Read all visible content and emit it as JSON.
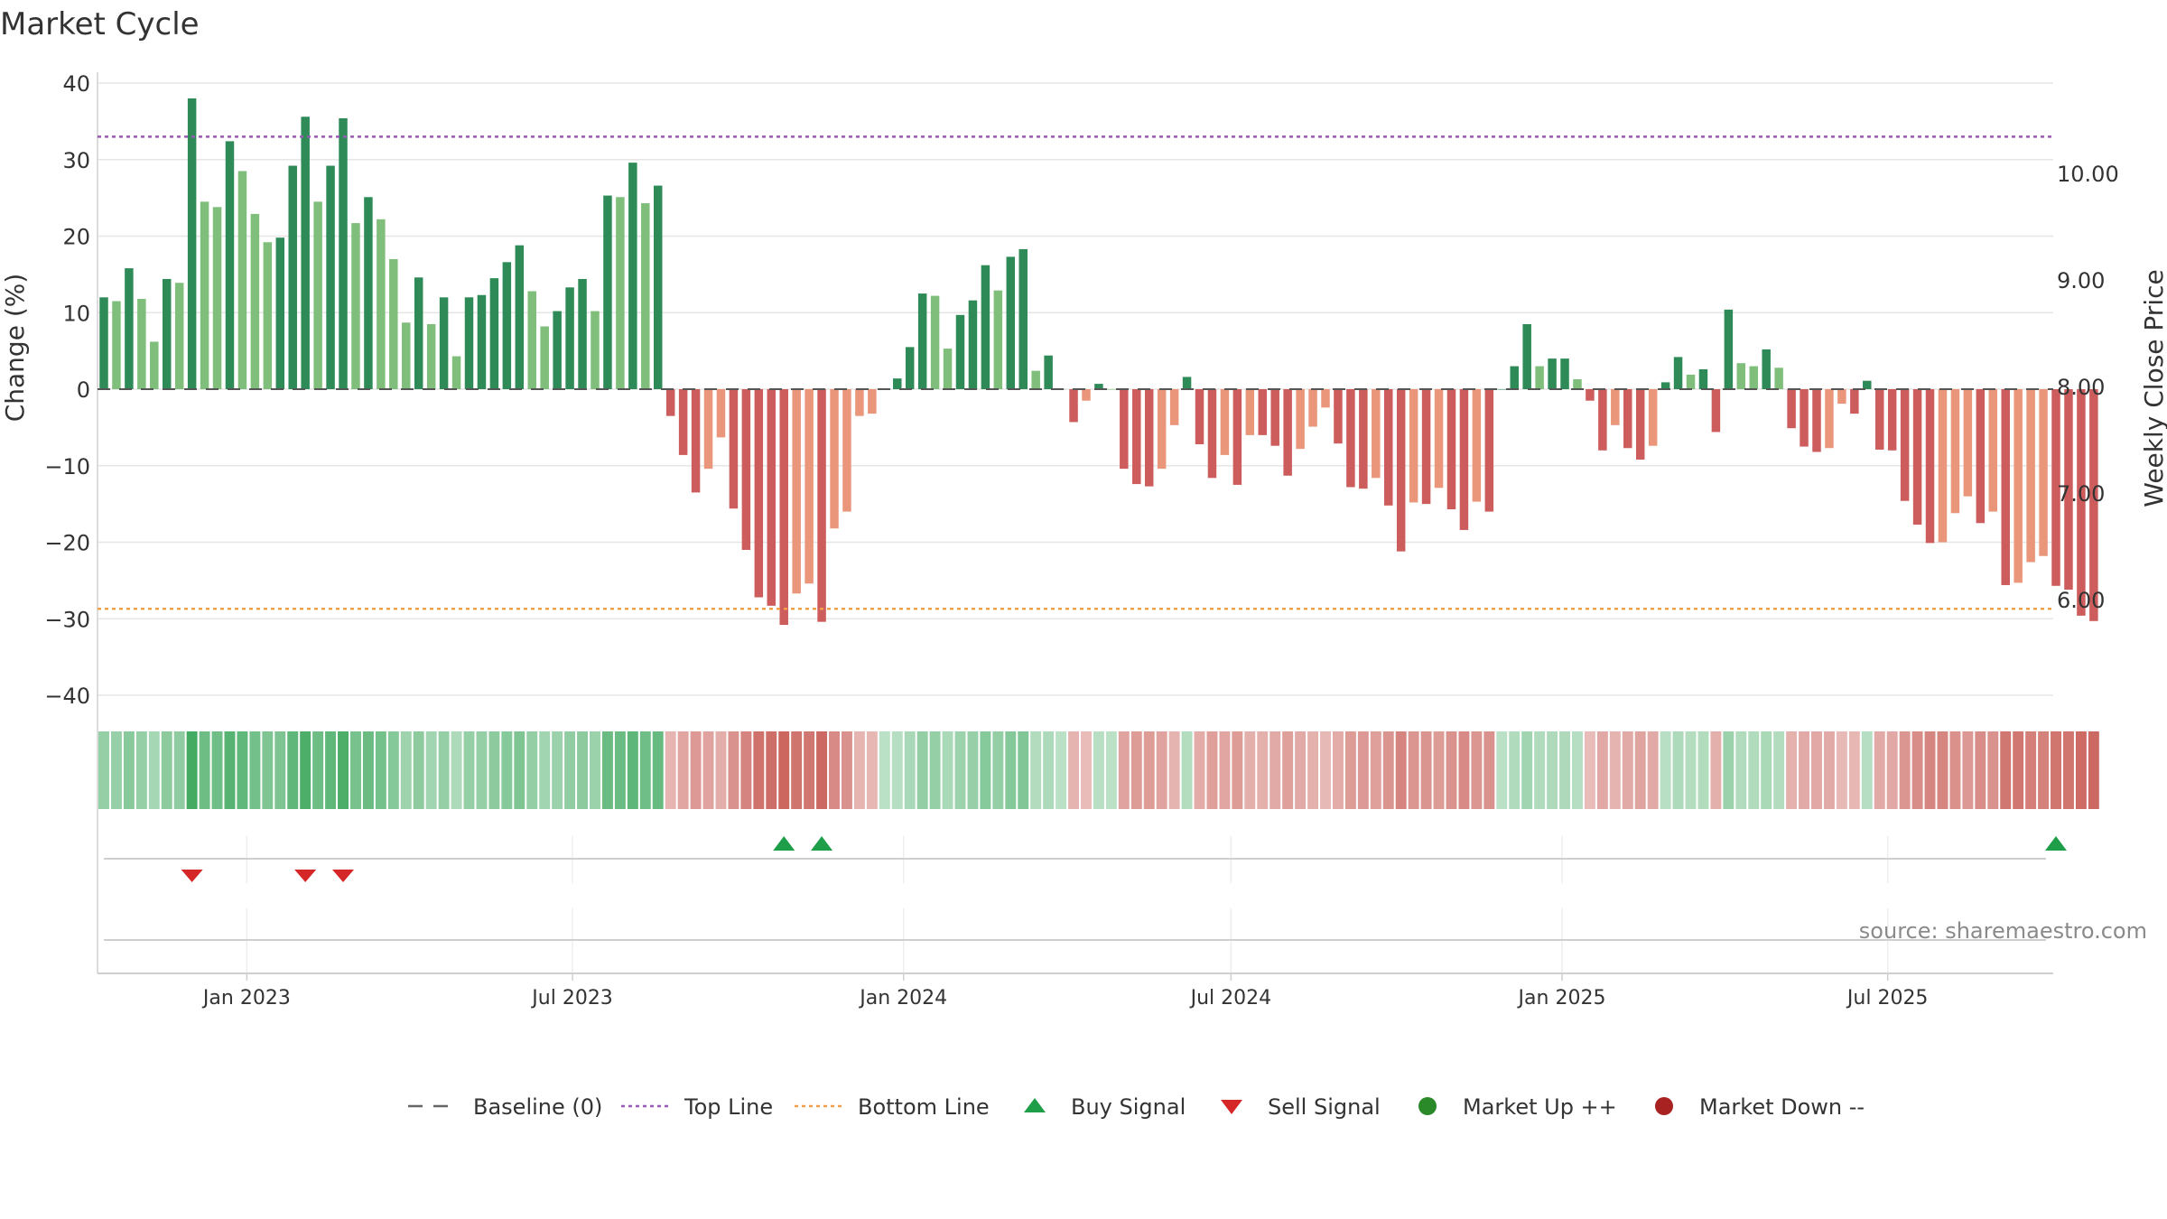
{
  "chart_data": {
    "type": "bar",
    "title": "Market Cycle",
    "ylabel": "Change (%)",
    "y2label": "Weekly Close Price",
    "ylim": [
      -40,
      40
    ],
    "yticks": [
      40,
      30,
      20,
      10,
      0,
      -10,
      -20,
      -30,
      -40
    ],
    "ytick_labels": [
      "40",
      "30",
      "20",
      "10",
      "0",
      "−10",
      "−20",
      "−30",
      "−40"
    ],
    "y2lim": [
      5.0,
      10.7
    ],
    "y2ticks": [
      10,
      9,
      8,
      7,
      6
    ],
    "y2tick_labels": [
      "10.00",
      "9.00",
      "8.00",
      "7.00",
      "6.00"
    ],
    "x_start": "2022-10-10",
    "x_end": "2025-10-01",
    "week_step_days": 7,
    "xticks": [
      {
        "date": "2023-01-01",
        "label": "Jan 2023"
      },
      {
        "date": "2023-07-01",
        "label": "Jul 2023"
      },
      {
        "date": "2024-01-01",
        "label": "Jan 2024"
      },
      {
        "date": "2024-07-01",
        "label": "Jul 2024"
      },
      {
        "date": "2025-01-01",
        "label": "Jan 2025"
      },
      {
        "date": "2025-07-01",
        "label": "Jul 2025"
      }
    ],
    "top_line": 33,
    "bottom_line": -28.7,
    "values": [
      12,
      11.5,
      15.8,
      11.8,
      6.2,
      14.4,
      13.9,
      38,
      24.5,
      23.8,
      32.4,
      28.5,
      22.9,
      19.2,
      19.8,
      29.2,
      35.6,
      24.5,
      29.2,
      35.4,
      21.7,
      25.1,
      22.2,
      17,
      8.7,
      14.6,
      8.5,
      12,
      4.3,
      12,
      12.3,
      14.5,
      16.6,
      18.8,
      12.8,
      8.2,
      10.2,
      13.3,
      14.4,
      10.2,
      25.3,
      25.1,
      29.6,
      24.3,
      26.6,
      -3.5,
      -8.6,
      -13.5,
      -10.4,
      -6.3,
      -15.6,
      -21,
      -27.2,
      -28.3,
      -30.8,
      -26.7,
      -25.4,
      -30.4,
      -18.2,
      -16,
      -3.5,
      -3.2,
      0,
      1.4,
      5.5,
      12.5,
      12.2,
      5.3,
      9.7,
      11.6,
      16.2,
      12.9,
      17.3,
      18.3,
      2.4,
      4.4,
      0,
      -4.3,
      -1.5,
      0.7,
      0,
      -10.4,
      -12.4,
      -12.7,
      -10.4,
      -4.7,
      1.6,
      -7.2,
      -11.6,
      -8.6,
      -12.5,
      -6,
      -6,
      -7.4,
      -11.3,
      -7.8,
      -4.9,
      -2.4,
      -7.1,
      -12.8,
      -13,
      -11.6,
      -15.2,
      -21.2,
      -14.8,
      -15,
      -12.9,
      -15.7,
      -18.4,
      -14.7,
      -16,
      0,
      3,
      8.5,
      3,
      4,
      4,
      1.3,
      -1.5,
      -8,
      -4.7,
      -7.7,
      -9.2,
      -7.4,
      0.9,
      4.2,
      1.9,
      2.6,
      -5.6,
      10.4,
      3.4,
      3,
      5.2,
      2.8,
      -5.1,
      -7.5,
      -8.2,
      -7.7,
      -1.9,
      -3.2,
      1.1,
      -7.9,
      -8,
      -14.6,
      -17.7,
      -20.1,
      -20,
      -16.2,
      -14,
      -17.5,
      -16,
      -25.6,
      -25.3,
      -22.6,
      -21.8,
      -25.7,
      -26.2,
      -29.6,
      -30.3
    ],
    "series": [
      {
        "name": "Baseline (0)",
        "style": "dashed",
        "color": "#666666"
      },
      {
        "name": "Top Line",
        "style": "dotted",
        "color": "#9b59b6"
      },
      {
        "name": "Bottom Line",
        "style": "dotted",
        "color": "#f0a04b"
      },
      {
        "name": "Buy Signal",
        "marker": "triangle-up",
        "color": "#1e9e48"
      },
      {
        "name": "Sell Signal",
        "marker": "triangle-down",
        "color": "#d62728"
      },
      {
        "name": "Market Up ++",
        "marker": "circle",
        "color": "#2a8a2a"
      },
      {
        "name": "Market Down --",
        "marker": "circle",
        "color": "#a82222"
      }
    ],
    "buy_signal_weeks": [
      54,
      57,
      155
    ],
    "sell_signal_weeks": [
      7,
      16,
      19
    ],
    "source": "source: sharemaestro.com",
    "colors": {
      "pos_strong": "#2e8b57",
      "pos_light": "#7fbf7b",
      "neg_strong": "#cd5c5c",
      "neg_light": "#e9967a",
      "top_line": "#9b59b6",
      "bottom_line": "#f0a04b",
      "buy": "#1e9e48",
      "sell": "#d62728"
    }
  }
}
